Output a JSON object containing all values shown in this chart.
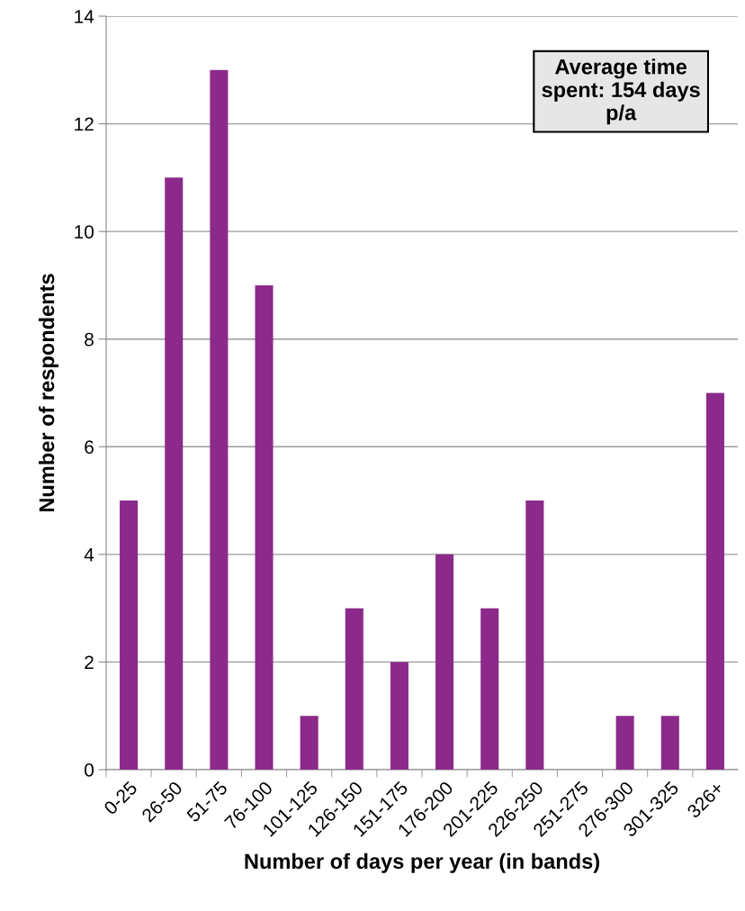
{
  "chart_data": {
    "type": "bar",
    "xlabel": "Number of days per year (in bands)",
    "ylabel": "Number of respondents",
    "categories": [
      "0-25",
      "26-50",
      "51-75",
      "76-100",
      "101-125",
      "126-150",
      "151-175",
      "176-200",
      "201-225",
      "226-250",
      "251-275",
      "276-300",
      "301-325",
      "326+"
    ],
    "values": [
      5,
      11,
      13,
      9,
      1,
      3,
      2,
      4,
      3,
      5,
      0,
      1,
      1,
      7
    ],
    "color": "#8b2a8b",
    "ylim": [
      0,
      14
    ],
    "yticks": [
      0,
      2,
      4,
      6,
      8,
      10,
      12,
      14
    ],
    "grid": "y",
    "legend": false,
    "annotations": [
      "Average time\nspent: 154 days\np/a"
    ]
  }
}
